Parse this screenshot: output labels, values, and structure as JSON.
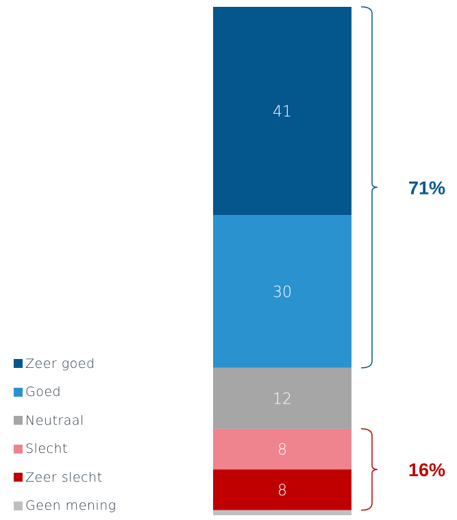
{
  "chart_data": {
    "type": "bar",
    "stacked": true,
    "orientation": "vertical",
    "categories": [
      ""
    ],
    "series": [
      {
        "name": "Zeer goed",
        "values": [
          41
        ],
        "color": "#04578d"
      },
      {
        "name": "Goed",
        "values": [
          30
        ],
        "color": "#2a92ce"
      },
      {
        "name": "Neutraal",
        "values": [
          12
        ],
        "color": "#a6a6a6"
      },
      {
        "name": "Slecht",
        "values": [
          8
        ],
        "color": "#ef838e"
      },
      {
        "name": "Zeer slecht",
        "values": [
          8
        ],
        "color": "#c00000"
      },
      {
        "name": "Geen mening",
        "values": [
          1
        ],
        "color": "#bfbfbf"
      }
    ],
    "data_labels": [
      "41",
      "30",
      "12",
      "8",
      "8",
      ""
    ],
    "annotations": [
      {
        "text": "71%",
        "spans_series": [
          "Zeer goed",
          "Goed"
        ],
        "color": "#04578d"
      },
      {
        "text": "16%",
        "spans_series": [
          "Slecht",
          "Zeer slecht"
        ],
        "color": "#c00000"
      }
    ],
    "ylim": [
      0,
      100
    ],
    "legend_position": "bottom-left",
    "grid": false
  }
}
